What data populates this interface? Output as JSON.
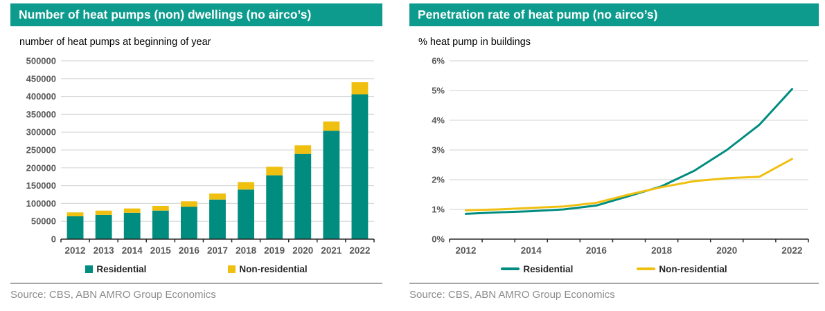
{
  "colors": {
    "header_teal": "#0C9B8D",
    "series_teal": "#008D80",
    "series_yellow": "#F0C011",
    "gridline": "#D9D9D9",
    "axis": "#262626",
    "tick_label": "#595959",
    "source_text": "#8C8C8C",
    "divider": "#A6A6A6"
  },
  "panels": [
    {
      "title": "Number of heat pumps (non) dwellings (no airco’s)",
      "subtitle": "number of heat pumps at beginning of year",
      "source": "Source: CBS, ABN AMRO Group Economics",
      "header_bg": "#0C9B8D",
      "legend": [
        {
          "label": "Residential",
          "color": "#008D80",
          "swatch": "square"
        },
        {
          "label": "Non-residential",
          "color": "#F0C011",
          "swatch": "square"
        }
      ]
    },
    {
      "title": "Penetration rate of heat pump (no airco’s)",
      "subtitle": "% heat pump in buildings",
      "source": "Source: CBS, ABN AMRO Group Economics",
      "header_bg": "#0C9B8D",
      "legend": [
        {
          "label": "Residential",
          "color": "#008D80",
          "swatch": "line"
        },
        {
          "label": "Non-residential",
          "color": "#F0C011",
          "swatch": "line"
        }
      ]
    }
  ],
  "chart_data": [
    {
      "type": "bar",
      "stacked": true,
      "title": "Number of heat pumps (non) dwellings (no airco’s)",
      "subtitle": "number of heat pumps at beginning of year",
      "categories": [
        "2012",
        "2013",
        "2014",
        "2015",
        "2016",
        "2017",
        "2018",
        "2019",
        "2020",
        "2021",
        "2022"
      ],
      "series": [
        {
          "name": "Residential",
          "color": "#008D80",
          "values": [
            64000,
            68000,
            74000,
            80000,
            91000,
            111000,
            139000,
            179000,
            239000,
            304000,
            406000
          ]
        },
        {
          "name": "Non-residential",
          "color": "#F0C011",
          "values": [
            11000,
            12000,
            12000,
            13000,
            15000,
            17000,
            21000,
            24000,
            24000,
            26000,
            34000
          ]
        }
      ],
      "ylim": [
        0,
        500000
      ],
      "ytick_step": 50000,
      "ytick_suffix": "",
      "xtick_label_every": 1,
      "grid": true,
      "legend_position": "bottom"
    },
    {
      "type": "line",
      "title": "Penetration rate of heat pump (no airco’s)",
      "subtitle": "% heat pump in buildings",
      "categories": [
        "2012",
        "2013",
        "2014",
        "2015",
        "2016",
        "2017",
        "2018",
        "2019",
        "2020",
        "2021",
        "2022"
      ],
      "series": [
        {
          "name": "Residential",
          "color": "#008D80",
          "values": [
            0.85,
            0.9,
            0.94,
            1.0,
            1.13,
            1.45,
            1.78,
            2.3,
            3.0,
            3.85,
            5.05
          ]
        },
        {
          "name": "Non-residential",
          "color": "#F0C011",
          "values": [
            0.97,
            1.0,
            1.05,
            1.1,
            1.22,
            1.5,
            1.75,
            1.95,
            2.05,
            2.1,
            2.7
          ]
        }
      ],
      "ylim": [
        0,
        6
      ],
      "ytick_step": 1,
      "ytick_suffix": "%",
      "xtick_label_every": 2,
      "grid": true,
      "legend_position": "bottom"
    }
  ]
}
